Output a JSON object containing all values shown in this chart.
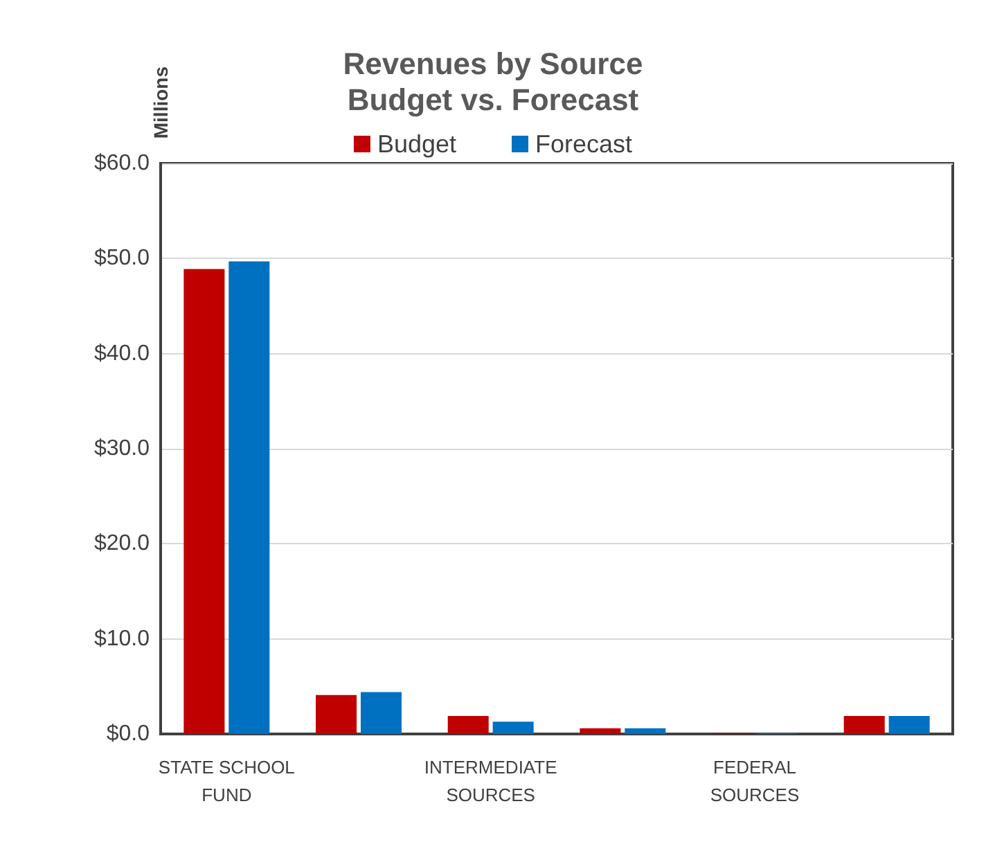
{
  "chart_data": {
    "type": "bar",
    "title": "Revenues by Source\nBudget vs. Forecast",
    "ylabel": "Millions",
    "categories": [
      "STATE SCHOOL\nFUND",
      null,
      "INTERMEDIATE\nSOURCES",
      null,
      "FEDERAL\nSOURCES",
      null
    ],
    "series": [
      {
        "name": "Budget",
        "color": "#c00000",
        "values": [
          48.9,
          4.1,
          1.9,
          0.6,
          0.1,
          1.9
        ]
      },
      {
        "name": "Forecast",
        "color": "#0070c0",
        "values": [
          49.7,
          4.4,
          1.3,
          0.6,
          0.1,
          1.9
        ]
      }
    ],
    "ylim": [
      0,
      60
    ],
    "yticks": [
      {
        "value": 0,
        "label": "$0.0"
      },
      {
        "value": 10,
        "label": "$10.0"
      },
      {
        "value": 20,
        "label": "$20.0"
      },
      {
        "value": 30,
        "label": "$30.0"
      },
      {
        "value": 40,
        "label": "$40.0"
      },
      {
        "value": 50,
        "label": "$50.0"
      },
      {
        "value": 60,
        "label": "$60.0"
      }
    ],
    "grid": "y",
    "legend": "top"
  }
}
